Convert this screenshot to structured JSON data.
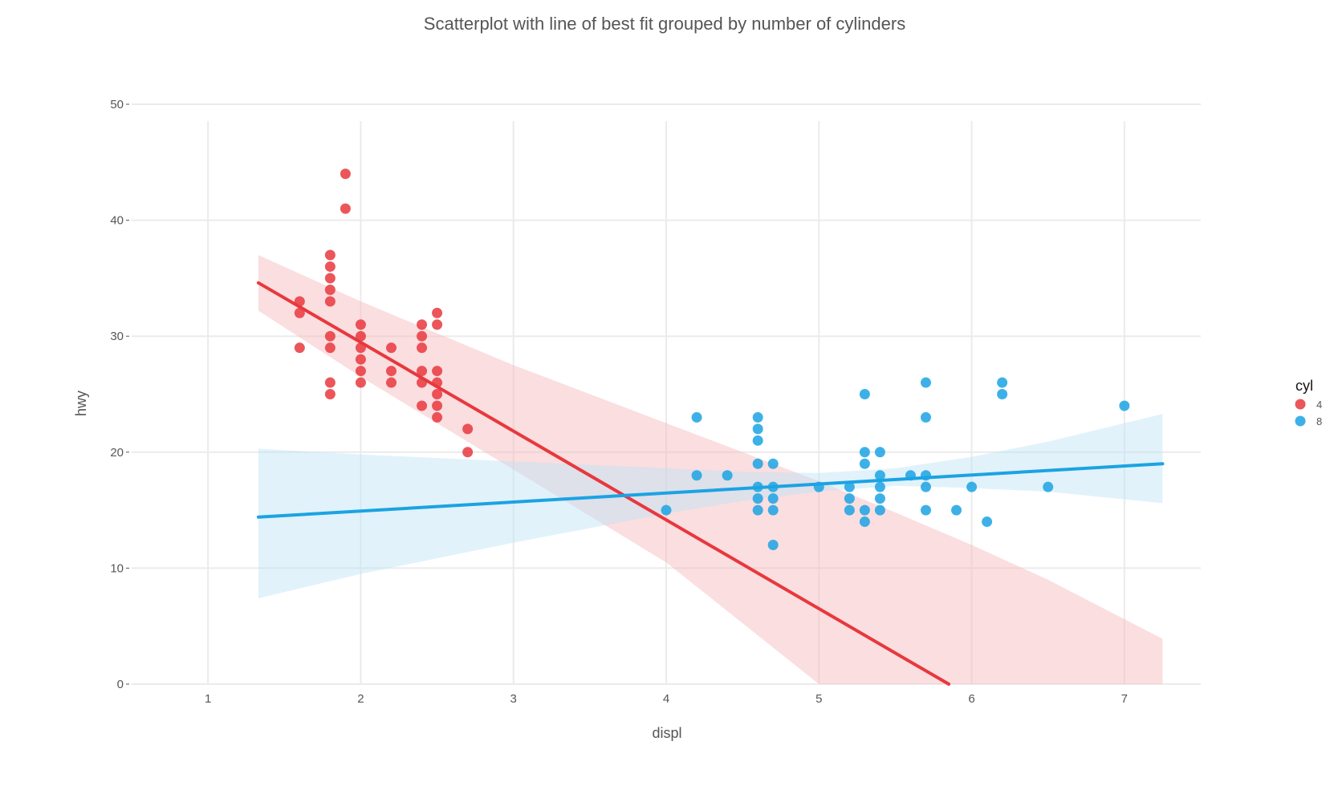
{
  "chart_data": {
    "type": "scatter",
    "title": "Scatterplot with line of best fit grouped by number of cylinders",
    "xlabel": "displ",
    "ylabel": "hwy",
    "xlim": [
      0.5,
      7.5
    ],
    "ylim": [
      0,
      50
    ],
    "x_ticks": [
      1,
      2,
      3,
      4,
      5,
      6,
      7
    ],
    "y_ticks": [
      0,
      10,
      20,
      30,
      40,
      50
    ],
    "grid": true,
    "legend": {
      "title": "cyl",
      "placement": "right",
      "entries": [
        "4",
        "8"
      ]
    },
    "series": [
      {
        "name": "4",
        "color": "#e8383d",
        "band_color": "#f4b6bb",
        "points": [
          [
            1.6,
            33
          ],
          [
            1.6,
            32
          ],
          [
            1.6,
            29
          ],
          [
            1.8,
            37
          ],
          [
            1.8,
            36
          ],
          [
            1.8,
            35
          ],
          [
            1.8,
            34
          ],
          [
            1.8,
            33
          ],
          [
            1.8,
            30
          ],
          [
            1.8,
            29
          ],
          [
            1.8,
            26
          ],
          [
            1.8,
            25
          ],
          [
            1.9,
            44
          ],
          [
            1.9,
            41
          ],
          [
            2.0,
            31
          ],
          [
            2.0,
            30
          ],
          [
            2.0,
            29
          ],
          [
            2.0,
            28
          ],
          [
            2.0,
            27
          ],
          [
            2.0,
            26
          ],
          [
            2.2,
            29
          ],
          [
            2.2,
            27
          ],
          [
            2.2,
            26
          ],
          [
            2.4,
            31
          ],
          [
            2.4,
            30
          ],
          [
            2.4,
            29
          ],
          [
            2.4,
            27
          ],
          [
            2.4,
            26
          ],
          [
            2.4,
            24
          ],
          [
            2.5,
            32
          ],
          [
            2.5,
            31
          ],
          [
            2.5,
            27
          ],
          [
            2.5,
            26
          ],
          [
            2.5,
            25
          ],
          [
            2.5,
            24
          ],
          [
            2.5,
            23
          ],
          [
            2.7,
            22
          ],
          [
            2.7,
            20
          ]
        ],
        "fit": {
          "x": [
            1.33,
            5.85
          ],
          "y": [
            34.6,
            0
          ]
        },
        "band": {
          "x": [
            1.33,
            2.0,
            3.0,
            4.0,
            5.0,
            5.5,
            6.0,
            6.5,
            7.25
          ],
          "upper": [
            37.0,
            33.0,
            27.5,
            22.5,
            17.5,
            14.8,
            12.0,
            9.0,
            3.9
          ],
          "lower": [
            32.2,
            26.5,
            18.5,
            10.5,
            0,
            0,
            0,
            0,
            0
          ]
        }
      },
      {
        "name": "8",
        "color": "#1ba3e3",
        "band_color": "#bde3f7",
        "points": [
          [
            4.0,
            15
          ],
          [
            4.2,
            23
          ],
          [
            4.2,
            18
          ],
          [
            4.4,
            18
          ],
          [
            4.6,
            23
          ],
          [
            4.6,
            22
          ],
          [
            4.6,
            21
          ],
          [
            4.6,
            19
          ],
          [
            4.6,
            17
          ],
          [
            4.6,
            16
          ],
          [
            4.6,
            15
          ],
          [
            4.7,
            19
          ],
          [
            4.7,
            17
          ],
          [
            4.7,
            16
          ],
          [
            4.7,
            15
          ],
          [
            4.7,
            12
          ],
          [
            5.0,
            17
          ],
          [
            5.2,
            17
          ],
          [
            5.2,
            16
          ],
          [
            5.2,
            15
          ],
          [
            5.3,
            25
          ],
          [
            5.3,
            20
          ],
          [
            5.3,
            19
          ],
          [
            5.3,
            15
          ],
          [
            5.3,
            14
          ],
          [
            5.4,
            20
          ],
          [
            5.4,
            18
          ],
          [
            5.4,
            17
          ],
          [
            5.4,
            16
          ],
          [
            5.4,
            15
          ],
          [
            5.6,
            18
          ],
          [
            5.7,
            26
          ],
          [
            5.7,
            23
          ],
          [
            5.7,
            18
          ],
          [
            5.7,
            17
          ],
          [
            5.7,
            15
          ],
          [
            5.9,
            15
          ],
          [
            6.0,
            17
          ],
          [
            6.1,
            14
          ],
          [
            6.2,
            26
          ],
          [
            6.2,
            25
          ],
          [
            6.5,
            17
          ],
          [
            7.0,
            24
          ]
        ],
        "fit": {
          "x": [
            1.33,
            7.25
          ],
          "y": [
            14.4,
            19.0
          ]
        },
        "band": {
          "x": [
            1.33,
            2.0,
            3.0,
            4.0,
            4.5,
            5.0,
            5.5,
            6.0,
            6.5,
            7.25
          ],
          "upper": [
            20.3,
            19.8,
            19.2,
            18.6,
            18.3,
            18.2,
            18.6,
            19.6,
            20.9,
            23.3
          ],
          "lower": [
            7.4,
            9.5,
            12.2,
            14.7,
            15.8,
            16.6,
            17.1,
            16.9,
            16.6,
            15.6
          ]
        }
      }
    ]
  }
}
